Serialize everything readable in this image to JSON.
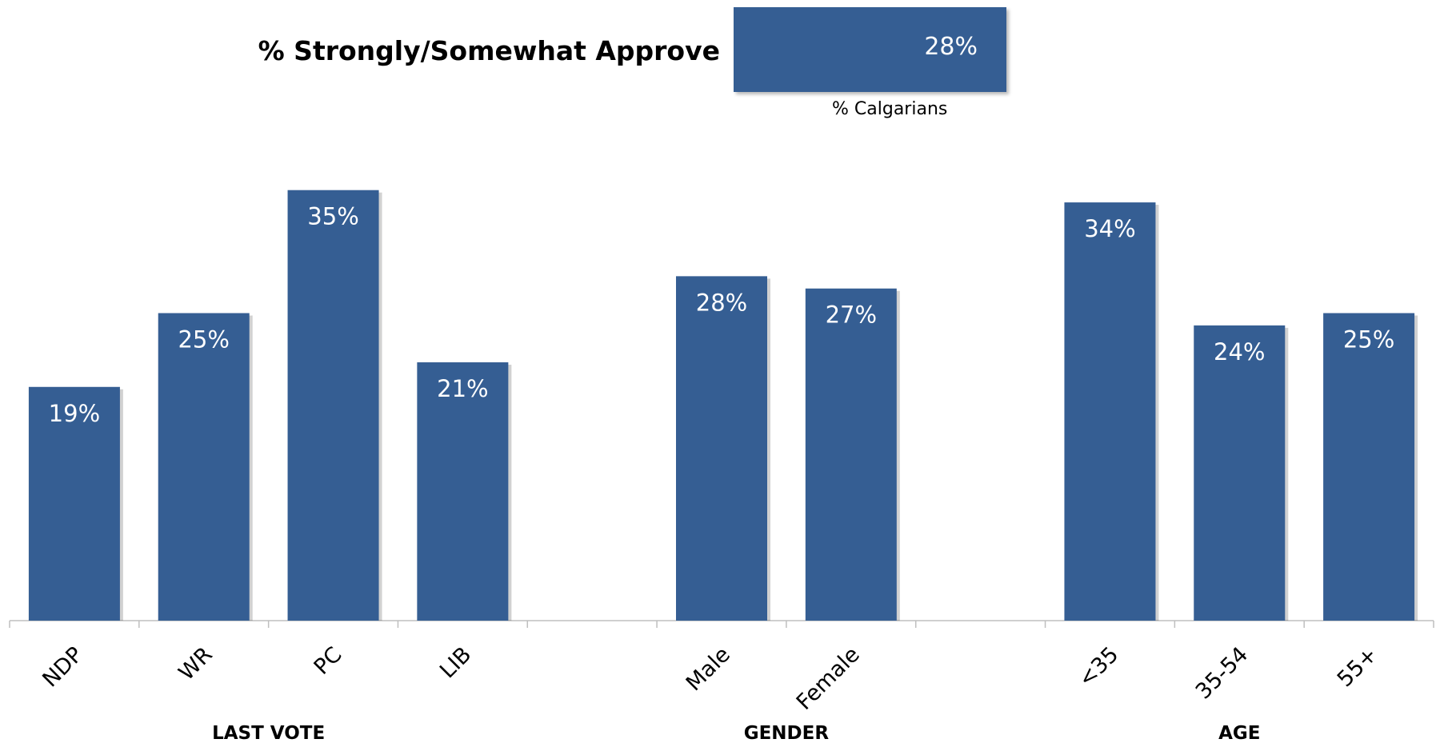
{
  "summary": {
    "title": "% Strongly/Somewhat Approve",
    "value_label": "28%",
    "value": 28,
    "label": "% Calgarians"
  },
  "chart_data": {
    "type": "bar",
    "categories": [
      "NDP",
      "WR",
      "PC",
      "LIB",
      "",
      "Male",
      "Female",
      "",
      "<35",
      "35-54",
      "55+"
    ],
    "values": [
      19,
      25,
      35,
      21,
      null,
      28,
      27,
      null,
      34,
      24,
      25
    ],
    "value_labels": [
      "19%",
      "25%",
      "35%",
      "21%",
      "",
      "28%",
      "27%",
      "",
      "34%",
      "24%",
      "25%"
    ],
    "groups": [
      {
        "name": "LAST VOTE",
        "categories": [
          "NDP",
          "WR",
          "PC",
          "LIB"
        ]
      },
      {
        "name": "GENDER",
        "categories": [
          "Male",
          "Female"
        ]
      },
      {
        "name": "AGE",
        "categories": [
          "<35",
          "35-54",
          "55+"
        ]
      }
    ],
    "title": "",
    "xlabel": "",
    "ylabel": "",
    "ylim": [
      0,
      35
    ],
    "grid": false,
    "legend": "none",
    "bar_color": "#355e93"
  }
}
